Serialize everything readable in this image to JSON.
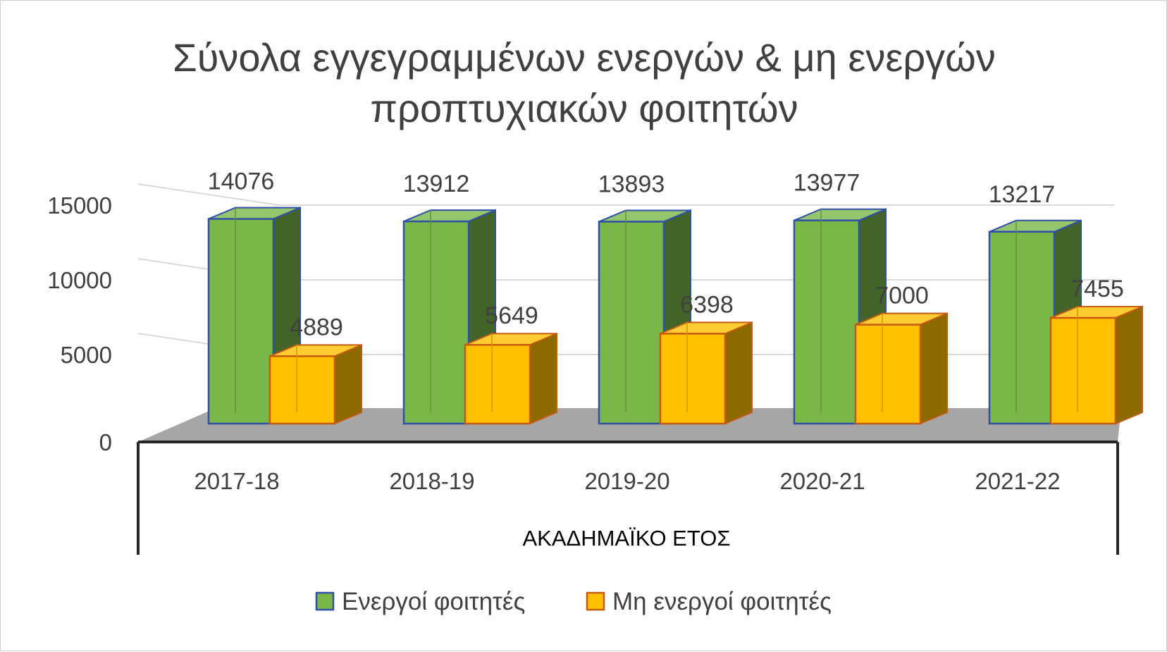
{
  "chart_data": {
    "type": "bar",
    "title_lines": [
      "Σύνολα εγγεγραμμένων ενεργών & μη ενεργών",
      "προπτυχιακών φοιτητών"
    ],
    "xlabel": "ΑΚΑΔΗΜΑΪΚΟ ΕΤΟΣ",
    "ylabel": "",
    "categories": [
      "2017-18",
      "2018-19",
      "2019-20",
      "2020-21",
      "2021-22"
    ],
    "series": [
      {
        "name": "Ενεργοί φοιτητές",
        "values": [
          14076,
          13912,
          13893,
          13977,
          13217
        ],
        "color": "#7ab648",
        "border": "#2f4fa8"
      },
      {
        "name": "Μη ενεργοί φοιτητές",
        "values": [
          4889,
          5649,
          6398,
          7000,
          7455
        ],
        "color": "#ffc000",
        "border": "#c55a11"
      }
    ],
    "y_ticks": [
      "0",
      "5000",
      "10000",
      "15000"
    ],
    "ylim": [
      0,
      15000
    ],
    "grid": true,
    "legend_position": "bottom",
    "style": "3d-column"
  }
}
